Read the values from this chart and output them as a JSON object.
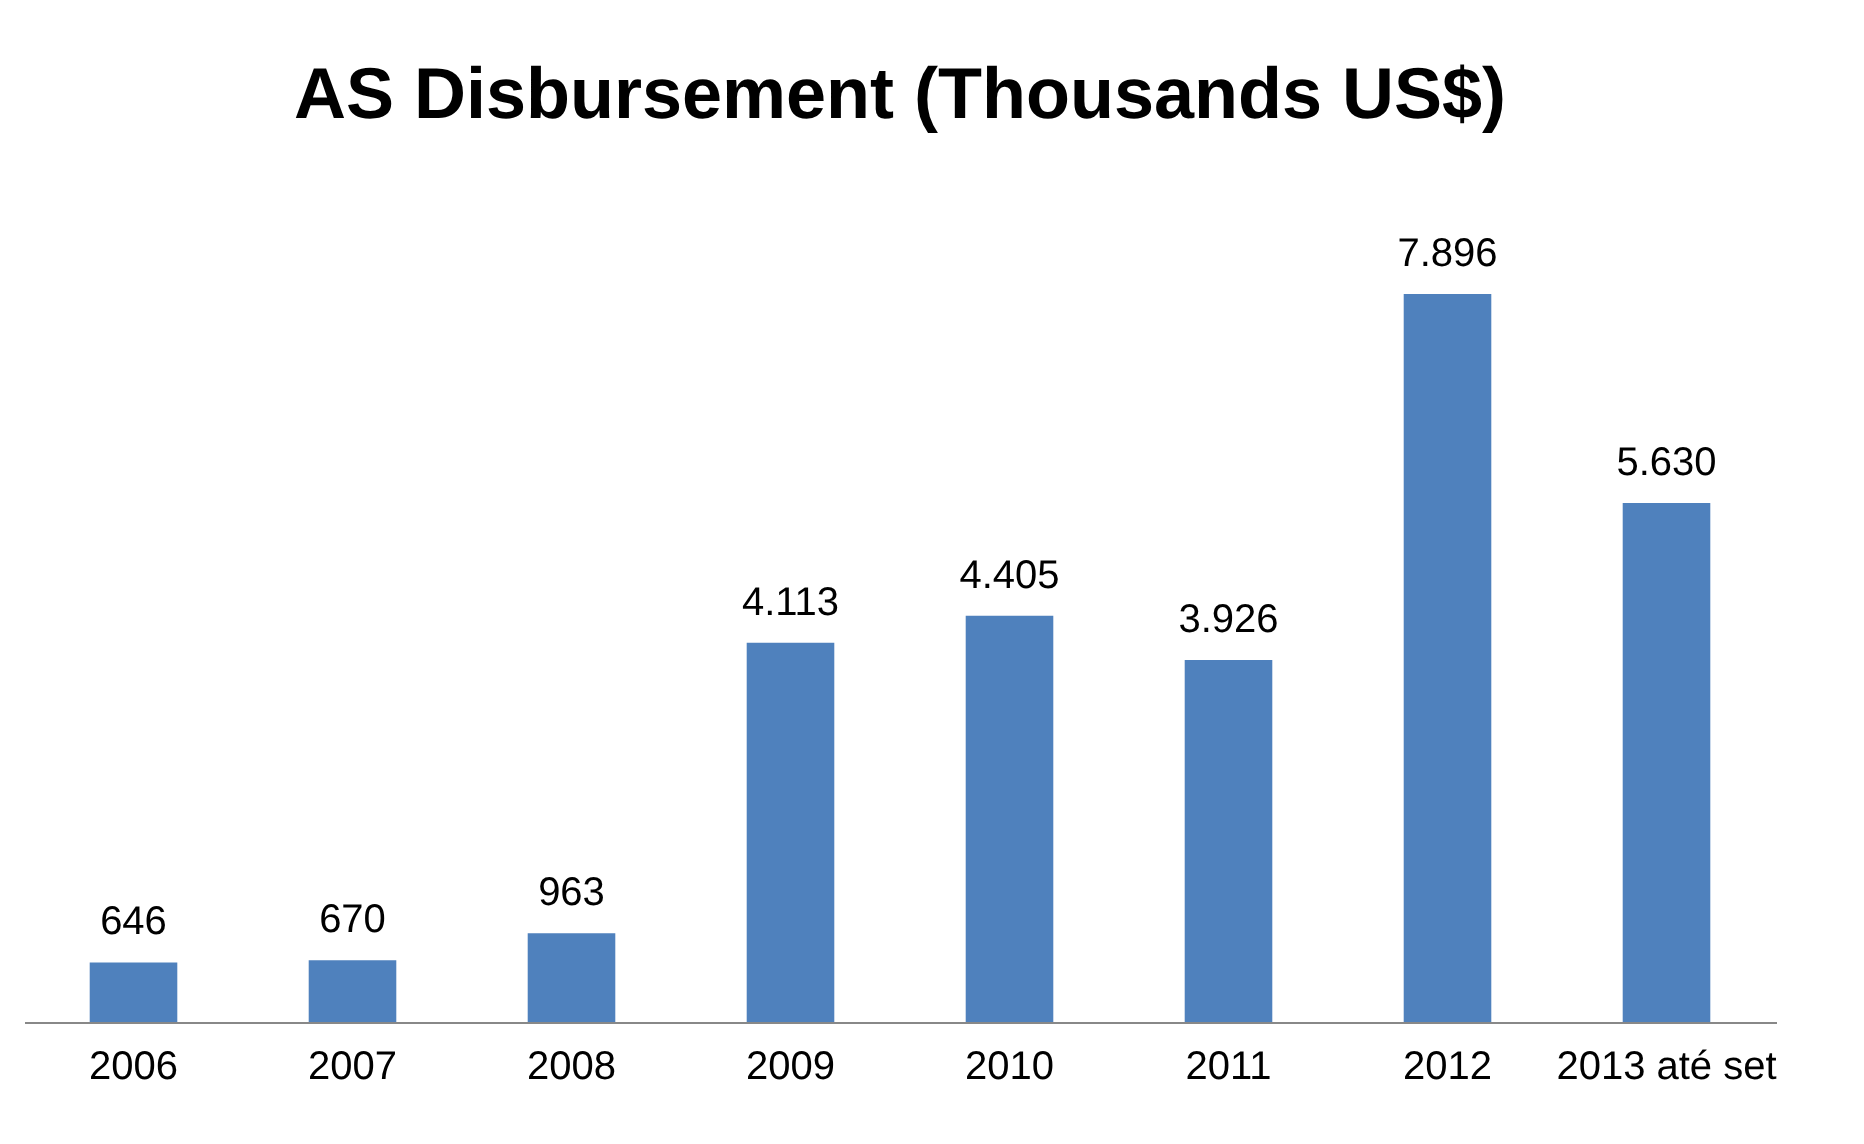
{
  "chart_data": {
    "type": "bar",
    "title": "AS Disbursement (Thousands US$)",
    "categories": [
      "2006",
      "2007",
      "2008",
      "2009",
      "2010",
      "2011",
      "2012",
      "2013 até set"
    ],
    "values": [
      646,
      670,
      963,
      4113,
      4405,
      3926,
      7896,
      5630
    ],
    "value_labels": [
      "646",
      "670",
      "963",
      "4.113",
      "4.405",
      "3.926",
      "7.896",
      "5.630"
    ],
    "color": "#4f81bd"
  }
}
